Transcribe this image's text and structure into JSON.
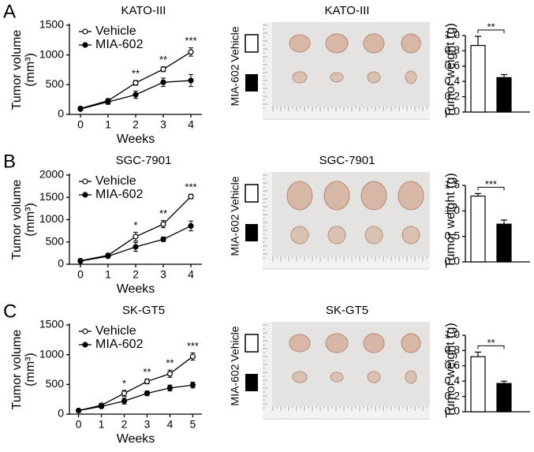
{
  "panel_labels": [
    "A",
    "B",
    "C"
  ],
  "photos": [
    {
      "title": "KATO-III",
      "row_labels": [
        "Vehicle",
        "MIA-602"
      ]
    },
    {
      "title": "SGC-7901",
      "row_labels": [
        "Vehicle",
        "MIA-602"
      ]
    },
    {
      "title": "SK-GT5",
      "row_labels": [
        "Vehicle",
        "MIA-602"
      ]
    }
  ],
  "chart_data": [
    {
      "type": "line",
      "title": "KATO-III",
      "xlabel": "Weeks",
      "ylabel": [
        "Tumor volume",
        "(mm³)"
      ],
      "x": [
        0,
        1,
        2,
        3,
        4
      ],
      "xlim": [
        -0.4,
        4.4
      ],
      "xticks": [
        0,
        1,
        2,
        3,
        4
      ],
      "ylim": [
        0,
        1500
      ],
      "yticks": [
        0,
        500,
        1000,
        1500
      ],
      "series": [
        {
          "name": "Vehicle",
          "color": "#000000",
          "fill": "#ffffff",
          "values": [
            100,
            230,
            530,
            760,
            1050
          ],
          "errors": [
            10,
            30,
            40,
            40,
            70
          ]
        },
        {
          "name": "MIA-602",
          "color": "#000000",
          "fill": "#000000",
          "values": [
            90,
            210,
            330,
            540,
            570
          ],
          "errors": [
            10,
            40,
            60,
            70,
            100
          ]
        }
      ],
      "significance": {
        "x": [
          2,
          3,
          4
        ],
        "labels": [
          "**",
          "**",
          "***"
        ]
      }
    },
    {
      "type": "bar",
      "ylabel": "Tumor weight (g)",
      "categories": [
        null,
        null
      ],
      "values": [
        0.87,
        0.45
      ],
      "errors": [
        0.12,
        0.04
      ],
      "colors": [
        "#ffffff",
        "#000000"
      ],
      "ylim": [
        0,
        1.0
      ],
      "yticks": [
        {
          "value": 0,
          "label": "0.0"
        },
        0.2,
        0.4,
        0.6,
        0.8,
        {
          "value": 1,
          "label": "1.0"
        }
      ],
      "significance": "**"
    },
    {
      "type": "line",
      "title": "SGC-7901",
      "xlabel": "Weeks",
      "ylabel": [
        "Tumor volume",
        "(mm³)"
      ],
      "x": [
        0,
        1,
        2,
        3,
        4
      ],
      "xlim": [
        -0.4,
        4.4
      ],
      "xticks": [
        0,
        1,
        2,
        3,
        4
      ],
      "ylim": [
        0,
        2000
      ],
      "yticks": [
        0,
        500,
        1000,
        1500,
        2000
      ],
      "series": [
        {
          "name": "Vehicle",
          "color": "#000000",
          "fill": "#ffffff",
          "values": [
            80,
            200,
            620,
            900,
            1520
          ],
          "errors": [
            10,
            30,
            100,
            80,
            50
          ]
        },
        {
          "name": "MIA-602",
          "color": "#000000",
          "fill": "#000000",
          "values": [
            70,
            180,
            390,
            560,
            860
          ],
          "errors": [
            10,
            30,
            100,
            50,
            110
          ]
        }
      ],
      "significance": {
        "x": [
          2,
          3,
          4
        ],
        "labels": [
          "*",
          "**",
          "***"
        ]
      }
    },
    {
      "type": "bar",
      "ylabel": "Tumor weight (g)",
      "categories": [
        null,
        null
      ],
      "values": [
        1.29,
        0.74
      ],
      "errors": [
        0.05,
        0.08
      ],
      "colors": [
        "#ffffff",
        "#000000"
      ],
      "ylim": [
        0,
        1.5
      ],
      "yticks": [
        {
          "value": 0,
          "label": "0.0"
        },
        0.5,
        {
          "value": 1,
          "label": "1.0"
        },
        1.5
      ],
      "significance": "***"
    },
    {
      "type": "line",
      "title": "SK-GT5",
      "xlabel": "Weeks",
      "ylabel": [
        "Tumor volume",
        "(mm³)"
      ],
      "x": [
        0,
        1,
        2,
        3,
        4,
        5
      ],
      "xlim": [
        -0.4,
        5.4
      ],
      "xticks": [
        0,
        1,
        2,
        3,
        4,
        5
      ],
      "ylim": [
        0,
        1500
      ],
      "yticks": [
        0,
        500,
        1000,
        1500
      ],
      "series": [
        {
          "name": "Vehicle",
          "color": "#000000",
          "fill": "#ffffff",
          "values": [
            60,
            150,
            350,
            550,
            680,
            970
          ],
          "errors": [
            10,
            30,
            50,
            40,
            60,
            60
          ]
        },
        {
          "name": "MIA-602",
          "color": "#000000",
          "fill": "#000000",
          "values": [
            60,
            130,
            220,
            350,
            440,
            490
          ],
          "errors": [
            10,
            30,
            50,
            40,
            50,
            50
          ]
        }
      ],
      "significance": {
        "x": [
          2,
          3,
          4,
          5
        ],
        "labels": [
          "*",
          "**",
          "**",
          "***"
        ]
      }
    },
    {
      "type": "bar",
      "ylabel": "Tumor weight (g)",
      "categories": [
        null,
        null
      ],
      "values": [
        0.72,
        0.37
      ],
      "errors": [
        0.06,
        0.03
      ],
      "colors": [
        "#ffffff",
        "#000000"
      ],
      "ylim": [
        0,
        1.0
      ],
      "yticks": [
        {
          "value": 0,
          "label": "0.0"
        },
        0.2,
        0.4,
        0.6,
        0.8,
        {
          "value": 1,
          "label": "1.0"
        }
      ],
      "significance": "**"
    }
  ]
}
